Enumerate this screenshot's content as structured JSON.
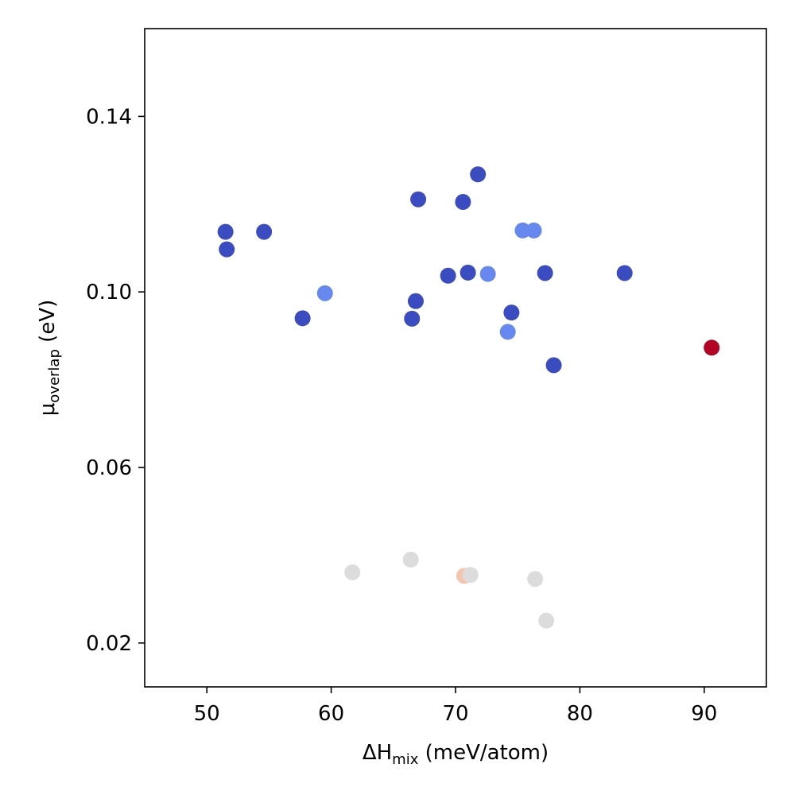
{
  "chart_data": {
    "type": "scatter",
    "title": "",
    "xlabel": {
      "main": "ΔH",
      "sub": "mix",
      "rest": " (meV/atom)"
    },
    "ylabel": {
      "main": "μ",
      "sub": "overlap",
      "rest": " (eV)"
    },
    "xlim": [
      45,
      95
    ],
    "ylim": [
      0.01,
      0.16
    ],
    "xticks": [
      50,
      60,
      70,
      80,
      90
    ],
    "xtick_labels": [
      "50",
      "60",
      "70",
      "80",
      "90"
    ],
    "yticks": [
      0.02,
      0.06,
      0.1,
      0.14
    ],
    "ytick_labels": [
      "0.02",
      "0.06",
      "0.10",
      "0.14"
    ],
    "grid": false,
    "colormap": "coolwarm",
    "colors": {
      "dark_blue": "#3b4cc0",
      "mid_blue": "#6788ee",
      "light_gray": "#dddcdc",
      "peach": "#f4c5ad",
      "dark_red": "#b40426"
    },
    "points": [
      {
        "x": 51.5,
        "y": 0.1137,
        "color": "dark_blue"
      },
      {
        "x": 51.6,
        "y": 0.1097,
        "color": "dark_blue"
      },
      {
        "x": 54.6,
        "y": 0.1137,
        "color": "dark_blue"
      },
      {
        "x": 57.7,
        "y": 0.094,
        "color": "dark_blue"
      },
      {
        "x": 59.5,
        "y": 0.0997,
        "color": "mid_blue"
      },
      {
        "x": 66.5,
        "y": 0.0939,
        "color": "dark_blue"
      },
      {
        "x": 66.8,
        "y": 0.0979,
        "color": "dark_blue"
      },
      {
        "x": 67.0,
        "y": 0.1211,
        "color": "dark_blue"
      },
      {
        "x": 69.4,
        "y": 0.1037,
        "color": "dark_blue"
      },
      {
        "x": 70.6,
        "y": 0.1205,
        "color": "dark_blue"
      },
      {
        "x": 71.0,
        "y": 0.1044,
        "color": "dark_blue"
      },
      {
        "x": 71.8,
        "y": 0.1268,
        "color": "dark_blue"
      },
      {
        "x": 72.6,
        "y": 0.1041,
        "color": "mid_blue"
      },
      {
        "x": 74.2,
        "y": 0.0909,
        "color": "mid_blue"
      },
      {
        "x": 74.5,
        "y": 0.0953,
        "color": "dark_blue"
      },
      {
        "x": 75.4,
        "y": 0.114,
        "color": "mid_blue"
      },
      {
        "x": 76.3,
        "y": 0.114,
        "color": "mid_blue"
      },
      {
        "x": 77.2,
        "y": 0.1043,
        "color": "dark_blue"
      },
      {
        "x": 77.9,
        "y": 0.0833,
        "color": "dark_blue"
      },
      {
        "x": 83.6,
        "y": 0.1043,
        "color": "dark_blue"
      },
      {
        "x": 90.6,
        "y": 0.0873,
        "color": "dark_red"
      },
      {
        "x": 61.7,
        "y": 0.0361,
        "color": "light_gray"
      },
      {
        "x": 66.4,
        "y": 0.039,
        "color": "light_gray"
      },
      {
        "x": 70.7,
        "y": 0.0353,
        "color": "peach"
      },
      {
        "x": 71.2,
        "y": 0.0355,
        "color": "light_gray"
      },
      {
        "x": 76.4,
        "y": 0.0346,
        "color": "light_gray"
      },
      {
        "x": 77.3,
        "y": 0.0251,
        "color": "light_gray"
      }
    ]
  }
}
